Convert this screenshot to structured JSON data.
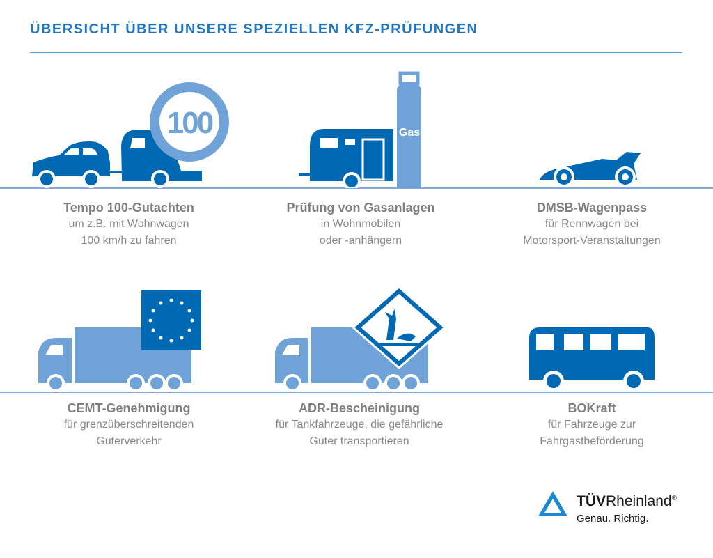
{
  "title": "ÜBERSICHT ÜBER UNSERE SPEZIELLEN KFZ-PRÜFUNGEN",
  "colors": {
    "dark_blue": "#0069b4",
    "light_blue": "#6fa3d8",
    "text": "#8a8a8a",
    "title": "#1e77c0"
  },
  "items": [
    {
      "icon": "car-with-caravan-speed-100-icon",
      "sign": "100",
      "heading": "Tempo 100-Gutachten",
      "line1": "um z.B. mit Wohnwagen",
      "line2": "100 km/h zu fahren"
    },
    {
      "icon": "caravan-gas-bottle-icon",
      "sign": "Gas",
      "heading": "Prüfung von Gasanlagen",
      "line1": "in  Wohnmobilen",
      "line2": "oder -anhängern"
    },
    {
      "icon": "race-car-icon",
      "heading": "DMSB-Wagenpass",
      "line1": "für Rennwagen bei",
      "line2": "Motorsport-Veranstaltungen"
    },
    {
      "icon": "truck-eu-flag-icon",
      "heading": "CEMT-Genehmigung",
      "line1": "für grenzüberschreitenden",
      "line2": "Güterverkehr"
    },
    {
      "icon": "truck-hazard-sign-icon",
      "heading": "ADR-Bescheinigung",
      "line1": "für Tankfahrzeuge, die gefährliche",
      "line2": "Güter transportieren"
    },
    {
      "icon": "bus-icon",
      "heading": "BOKraft",
      "line1": "für Fahrzeuge zur",
      "line2": "Fahrgastbeförderung"
    }
  ],
  "logo": {
    "brand_bold": "TÜV",
    "brand": "Rheinland",
    "registered": "®",
    "slogan": "Genau. Richtig."
  }
}
